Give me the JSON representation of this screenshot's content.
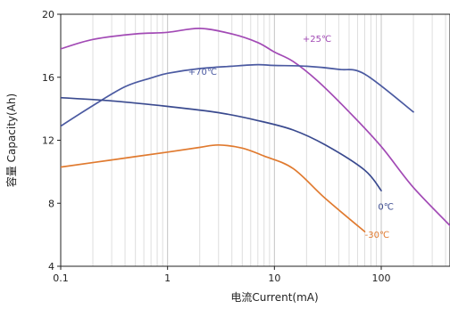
{
  "chart_data": {
    "type": "line",
    "xlabel": "电流Current(mA)",
    "ylabel": "容量 Capacity(Ah)",
    "x_scale": "log",
    "xlim": [
      0.1,
      500
    ],
    "ylim": [
      4,
      20
    ],
    "x_ticks": [
      {
        "value": 0.1,
        "label": "0.1"
      },
      {
        "value": 1,
        "label": "1"
      },
      {
        "value": 10,
        "label": "10"
      },
      {
        "value": 100,
        "label": "100"
      }
    ],
    "y_ticks": [
      {
        "value": 4,
        "label": "4"
      },
      {
        "value": 8,
        "label": "8"
      },
      {
        "value": 12,
        "label": "12"
      },
      {
        "value": 16,
        "label": "16"
      },
      {
        "value": 20,
        "label": "20"
      }
    ],
    "grid": {
      "x_minor": true,
      "y": false
    },
    "series": [
      {
        "name": "+25℃",
        "color": "#a24ab5",
        "points": [
          [
            0.1,
            17.8
          ],
          [
            0.2,
            18.4
          ],
          [
            0.5,
            18.75
          ],
          [
            1,
            18.85
          ],
          [
            2,
            19.1
          ],
          [
            4,
            18.75
          ],
          [
            7,
            18.2
          ],
          [
            10,
            17.6
          ],
          [
            15,
            17.0
          ],
          [
            25,
            15.8
          ],
          [
            50,
            13.8
          ],
          [
            100,
            11.6
          ],
          [
            200,
            9.0
          ],
          [
            500,
            6.2
          ]
        ]
      },
      {
        "name": "+70℃",
        "color": "#4b5aa1",
        "points": [
          [
            0.1,
            12.9
          ],
          [
            0.2,
            14.2
          ],
          [
            0.4,
            15.4
          ],
          [
            0.7,
            15.95
          ],
          [
            1,
            16.25
          ],
          [
            2,
            16.55
          ],
          [
            4,
            16.7
          ],
          [
            7,
            16.8
          ],
          [
            10,
            16.75
          ],
          [
            20,
            16.7
          ],
          [
            40,
            16.5
          ],
          [
            70,
            16.2
          ],
          [
            200,
            13.8
          ]
        ]
      },
      {
        "name": "0℃",
        "color": "#3a4a8f",
        "points": [
          [
            0.1,
            14.7
          ],
          [
            0.3,
            14.5
          ],
          [
            1,
            14.15
          ],
          [
            3,
            13.75
          ],
          [
            7,
            13.25
          ],
          [
            15,
            12.65
          ],
          [
            30,
            11.7
          ],
          [
            70,
            10.1
          ],
          [
            100,
            8.8
          ]
        ]
      },
      {
        "name": "-30℃",
        "color": "#e07a2f",
        "points": [
          [
            0.1,
            10.3
          ],
          [
            0.3,
            10.75
          ],
          [
            1,
            11.25
          ],
          [
            2,
            11.55
          ],
          [
            3,
            11.7
          ],
          [
            5,
            11.5
          ],
          [
            8,
            11.0
          ],
          [
            15,
            10.2
          ],
          [
            30,
            8.3
          ],
          [
            70,
            6.2
          ]
        ]
      }
    ]
  }
}
